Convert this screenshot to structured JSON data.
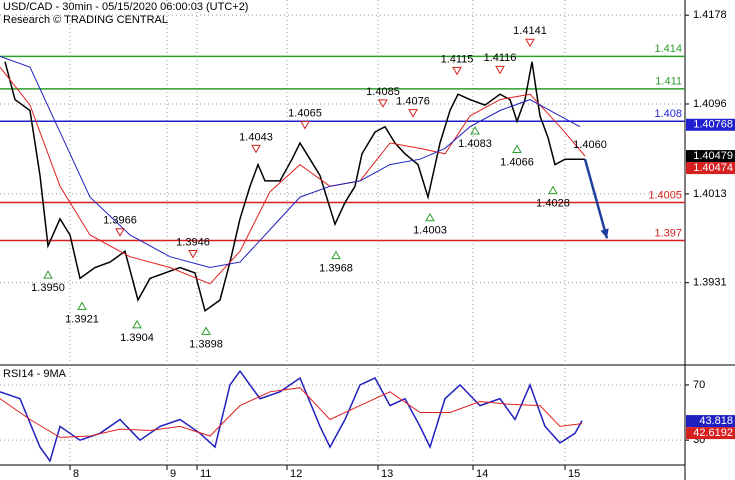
{
  "header": {
    "title": "USD/CAD - 30min - 05/15/2020 06:00:03 (UTC+2)",
    "subtitle": "Research © TRADING CENTRAL"
  },
  "chart_data": [
    {
      "type": "line",
      "xlim": [
        0,
        685
      ],
      "ylim": [
        1.3855,
        1.4192
      ],
      "yticks": [
        1.4178,
        1.4096,
        1.4013,
        1.3931
      ],
      "xticks": [
        {
          "value": 70,
          "label": "8"
        },
        {
          "value": 167,
          "label": "9"
        },
        {
          "value": 197,
          "label": "11"
        },
        {
          "value": 287,
          "label": "12"
        },
        {
          "value": 378,
          "label": "13"
        },
        {
          "value": 473,
          "label": "14"
        },
        {
          "value": 565,
          "label": "15"
        }
      ],
      "grid": true,
      "series": [
        {
          "name": "USD/CAD",
          "color": "#000000",
          "x": [
            5,
            15,
            30,
            40,
            48,
            60,
            70,
            80,
            95,
            110,
            125,
            138,
            150,
            165,
            180,
            195,
            205,
            220,
            230,
            240,
            250,
            258,
            265,
            280,
            292,
            300,
            310,
            320,
            335,
            345,
            355,
            362,
            375,
            385,
            395,
            405,
            418,
            428,
            440,
            450,
            458,
            470,
            485,
            500,
            510,
            517,
            525,
            532,
            540,
            548,
            555,
            565,
            575,
            585
          ],
          "values": [
            1.4135,
            1.41,
            1.409,
            1.403,
            1.3965,
            1.399,
            1.3975,
            1.3935,
            1.3945,
            1.395,
            1.396,
            1.3915,
            1.3935,
            1.394,
            1.3945,
            1.394,
            1.3905,
            1.3915,
            1.395,
            1.399,
            1.402,
            1.404,
            1.4025,
            1.4025,
            1.4045,
            1.406,
            1.4045,
            1.403,
            1.3985,
            1.4005,
            1.402,
            1.405,
            1.407,
            1.4075,
            1.406,
            1.405,
            1.404,
            1.401,
            1.406,
            1.409,
            1.4105,
            1.41,
            1.4095,
            1.4105,
            1.41,
            1.408,
            1.41,
            1.4135,
            1.4085,
            1.4065,
            1.404,
            1.4045,
            1.4045,
            1.4045
          ]
        },
        {
          "name": "MA fast",
          "color": "#e02020",
          "x": [
            0,
            30,
            60,
            90,
            130,
            170,
            210,
            240,
            270,
            300,
            330,
            360,
            390,
            420,
            445,
            470,
            500,
            530,
            560,
            585
          ],
          "values": [
            1.413,
            1.4095,
            1.402,
            1.3975,
            1.3955,
            1.3945,
            1.393,
            1.396,
            1.4015,
            1.404,
            1.402,
            1.4025,
            1.406,
            1.4055,
            1.405,
            1.4085,
            1.41,
            1.4105,
            1.4075,
            1.4048
          ]
        },
        {
          "name": "MA slow",
          "color": "#2020c0",
          "x": [
            0,
            30,
            60,
            90,
            130,
            170,
            210,
            240,
            270,
            300,
            330,
            360,
            390,
            420,
            445,
            470,
            500,
            530,
            560,
            580
          ],
          "values": [
            1.414,
            1.413,
            1.407,
            1.401,
            1.3975,
            1.3955,
            1.3945,
            1.395,
            1.398,
            1.401,
            1.402,
            1.4025,
            1.404,
            1.4045,
            1.4055,
            1.4075,
            1.409,
            1.41,
            1.4085,
            1.4075
          ]
        }
      ],
      "levels": [
        {
          "value": 1.414,
          "label": "1.414",
          "color": "#2e9e2e"
        },
        {
          "value": 1.411,
          "label": "1.411",
          "color": "#2e9e2e"
        },
        {
          "value": 1.408,
          "label": "1.408",
          "color": "#1f1fd0"
        },
        {
          "value": 1.4005,
          "label": "1.4005",
          "color": "#d62020"
        },
        {
          "value": 1.397,
          "label": "1.397",
          "color": "#d62020"
        }
      ],
      "annotations": [
        {
          "x": 530,
          "value": 1.4141,
          "label": "1.4141",
          "dir": "down"
        },
        {
          "x": 457,
          "value": 1.4115,
          "label": "1.4115",
          "dir": "down"
        },
        {
          "x": 500,
          "value": 1.4116,
          "label": "1.4116",
          "dir": "down"
        },
        {
          "x": 383,
          "value": 1.4085,
          "label": "1.4085",
          "dir": "down"
        },
        {
          "x": 413,
          "value": 1.4076,
          "label": "1.4076",
          "dir": "down"
        },
        {
          "x": 305,
          "value": 1.4065,
          "label": "1.4065",
          "dir": "down"
        },
        {
          "x": 256,
          "value": 1.4043,
          "label": "1.4043",
          "dir": "down"
        },
        {
          "x": 120,
          "value": 1.3966,
          "label": "1.3966",
          "dir": "down"
        },
        {
          "x": 193,
          "value": 1.3946,
          "label": "1.3946",
          "dir": "down"
        },
        {
          "x": 475,
          "value": 1.4083,
          "label": "1.4083",
          "dir": "up"
        },
        {
          "x": 517,
          "value": 1.4066,
          "label": "1.4066",
          "dir": "up"
        },
        {
          "x": 553,
          "value": 1.4028,
          "label": "1.4028",
          "dir": "up"
        },
        {
          "x": 430,
          "value": 1.4003,
          "label": "1.4003",
          "dir": "up"
        },
        {
          "x": 336,
          "value": 1.3968,
          "label": "1.3968",
          "dir": "up"
        },
        {
          "x": 48,
          "value": 1.395,
          "label": "1.3950",
          "dir": "up"
        },
        {
          "x": 82,
          "value": 1.3921,
          "label": "1.3921",
          "dir": "up"
        },
        {
          "x": 137,
          "value": 1.3904,
          "label": "1.3904",
          "dir": "up"
        },
        {
          "x": 206,
          "value": 1.3898,
          "label": "1.3898",
          "dir": "up"
        },
        {
          "x": 590,
          "value": 1.406,
          "label": "1.4060",
          "dir": "none"
        }
      ],
      "price_tags": [
        {
          "value": 1.40768,
          "label": "1.40768",
          "color": "#1f1fd0"
        },
        {
          "value": 1.40479,
          "label": "1.40479",
          "color": "#000000"
        },
        {
          "value": 1.40474,
          "label": "1.40474",
          "color": "#d62020"
        }
      ],
      "forecast": {
        "color": "#1f3f9f",
        "x": [
          585,
          607
        ],
        "values": [
          1.4045,
          1.3972
        ]
      }
    },
    {
      "type": "line",
      "title": "RSI14 - 9MA",
      "xlim": [
        0,
        685
      ],
      "ylim": [
        12,
        83
      ],
      "yticks": [
        70,
        30
      ],
      "series": [
        {
          "name": "RSI14",
          "color": "#2020c0",
          "x": [
            0,
            20,
            40,
            50,
            60,
            80,
            100,
            120,
            140,
            160,
            180,
            200,
            215,
            230,
            240,
            260,
            280,
            300,
            320,
            330,
            345,
            360,
            375,
            390,
            405,
            420,
            430,
            445,
            460,
            480,
            500,
            515,
            530,
            545,
            560,
            575,
            582
          ],
          "values": [
            65,
            60,
            25,
            15,
            40,
            30,
            35,
            45,
            30,
            40,
            45,
            35,
            25,
            70,
            80,
            60,
            65,
            75,
            40,
            25,
            45,
            70,
            75,
            55,
            60,
            40,
            25,
            60,
            70,
            55,
            60,
            45,
            70,
            40,
            28,
            35,
            44
          ]
        },
        {
          "name": "9MA",
          "color": "#e02020",
          "x": [
            0,
            30,
            60,
            90,
            120,
            150,
            180,
            210,
            240,
            270,
            300,
            330,
            360,
            390,
            420,
            450,
            480,
            510,
            540,
            560,
            582
          ],
          "values": [
            60,
            45,
            32,
            33,
            38,
            37,
            40,
            33,
            55,
            65,
            68,
            45,
            55,
            65,
            50,
            50,
            58,
            56,
            55,
            40,
            42
          ]
        }
      ],
      "value_tags": [
        {
          "value": 43.818,
          "label": "43.818",
          "color": "#2020c0"
        },
        {
          "value": 42.6192,
          "label": "42.6192",
          "color": "#d62020"
        }
      ]
    }
  ]
}
